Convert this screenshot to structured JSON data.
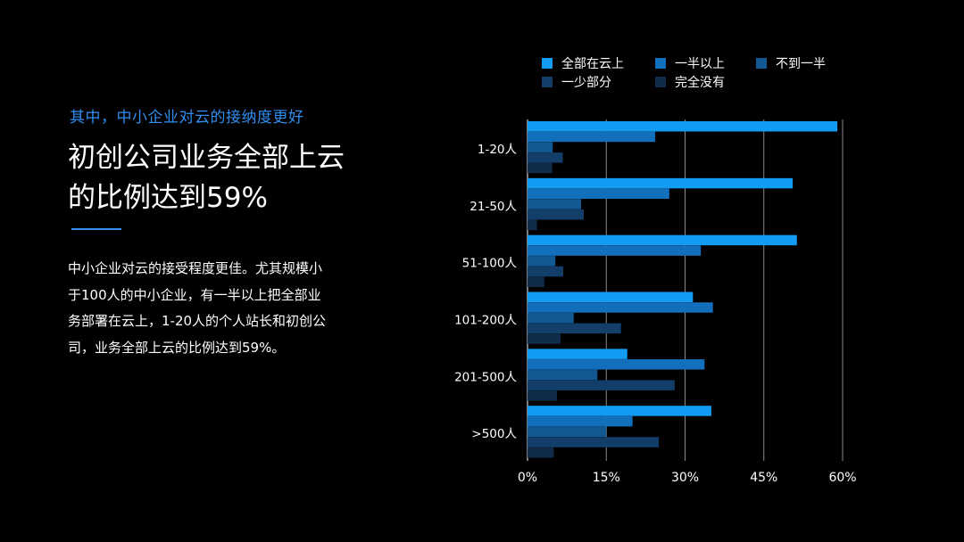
{
  "text": {
    "subtitle": "其中，中小企业对云的接纳度更好",
    "headline": "初创公司业务全部上云的比例达到59%",
    "body": "中小企业对云的接受程度更佳。尤其规模小于100人的中小企业，有一半以上把全部业务部署在云上，1-20人的个人站长和初创公司，业务全部上云的比例达到59%。"
  },
  "colors": {
    "background": "#000000",
    "accent": "#2f8ef0",
    "rule": "#2f8ef0"
  },
  "chart_data": {
    "type": "bar",
    "orientation": "horizontal",
    "categories": [
      "1-20人",
      "21-50人",
      "51-100人",
      "101-200人",
      "201-500人",
      ">500人"
    ],
    "series": [
      {
        "name": "全部在云上",
        "color": "#139cf3",
        "values": [
          59,
          50.5,
          51.3,
          31.5,
          19,
          35
        ]
      },
      {
        "name": "一半以上",
        "color": "#126fbc",
        "values": [
          24.3,
          27,
          33,
          35.3,
          33.7,
          20
        ]
      },
      {
        "name": "不到一半",
        "color": "#125993",
        "values": [
          4.8,
          10.2,
          5.3,
          8.8,
          13.3,
          15
        ]
      },
      {
        "name": "一少部分",
        "color": "#123e69",
        "values": [
          6.7,
          10.7,
          6.8,
          17.8,
          28,
          25
        ]
      },
      {
        "name": "完全没有",
        "color": "#112b4b",
        "values": [
          4.7,
          1.8,
          3.2,
          6.3,
          5.6,
          5
        ]
      }
    ],
    "x_ticks": [
      "0%",
      "15%",
      "30%",
      "45%",
      "60%"
    ],
    "x_tick_values": [
      0,
      15,
      30,
      45,
      60
    ],
    "xlim": [
      0,
      60
    ],
    "grid": true,
    "legend_position": "top"
  }
}
